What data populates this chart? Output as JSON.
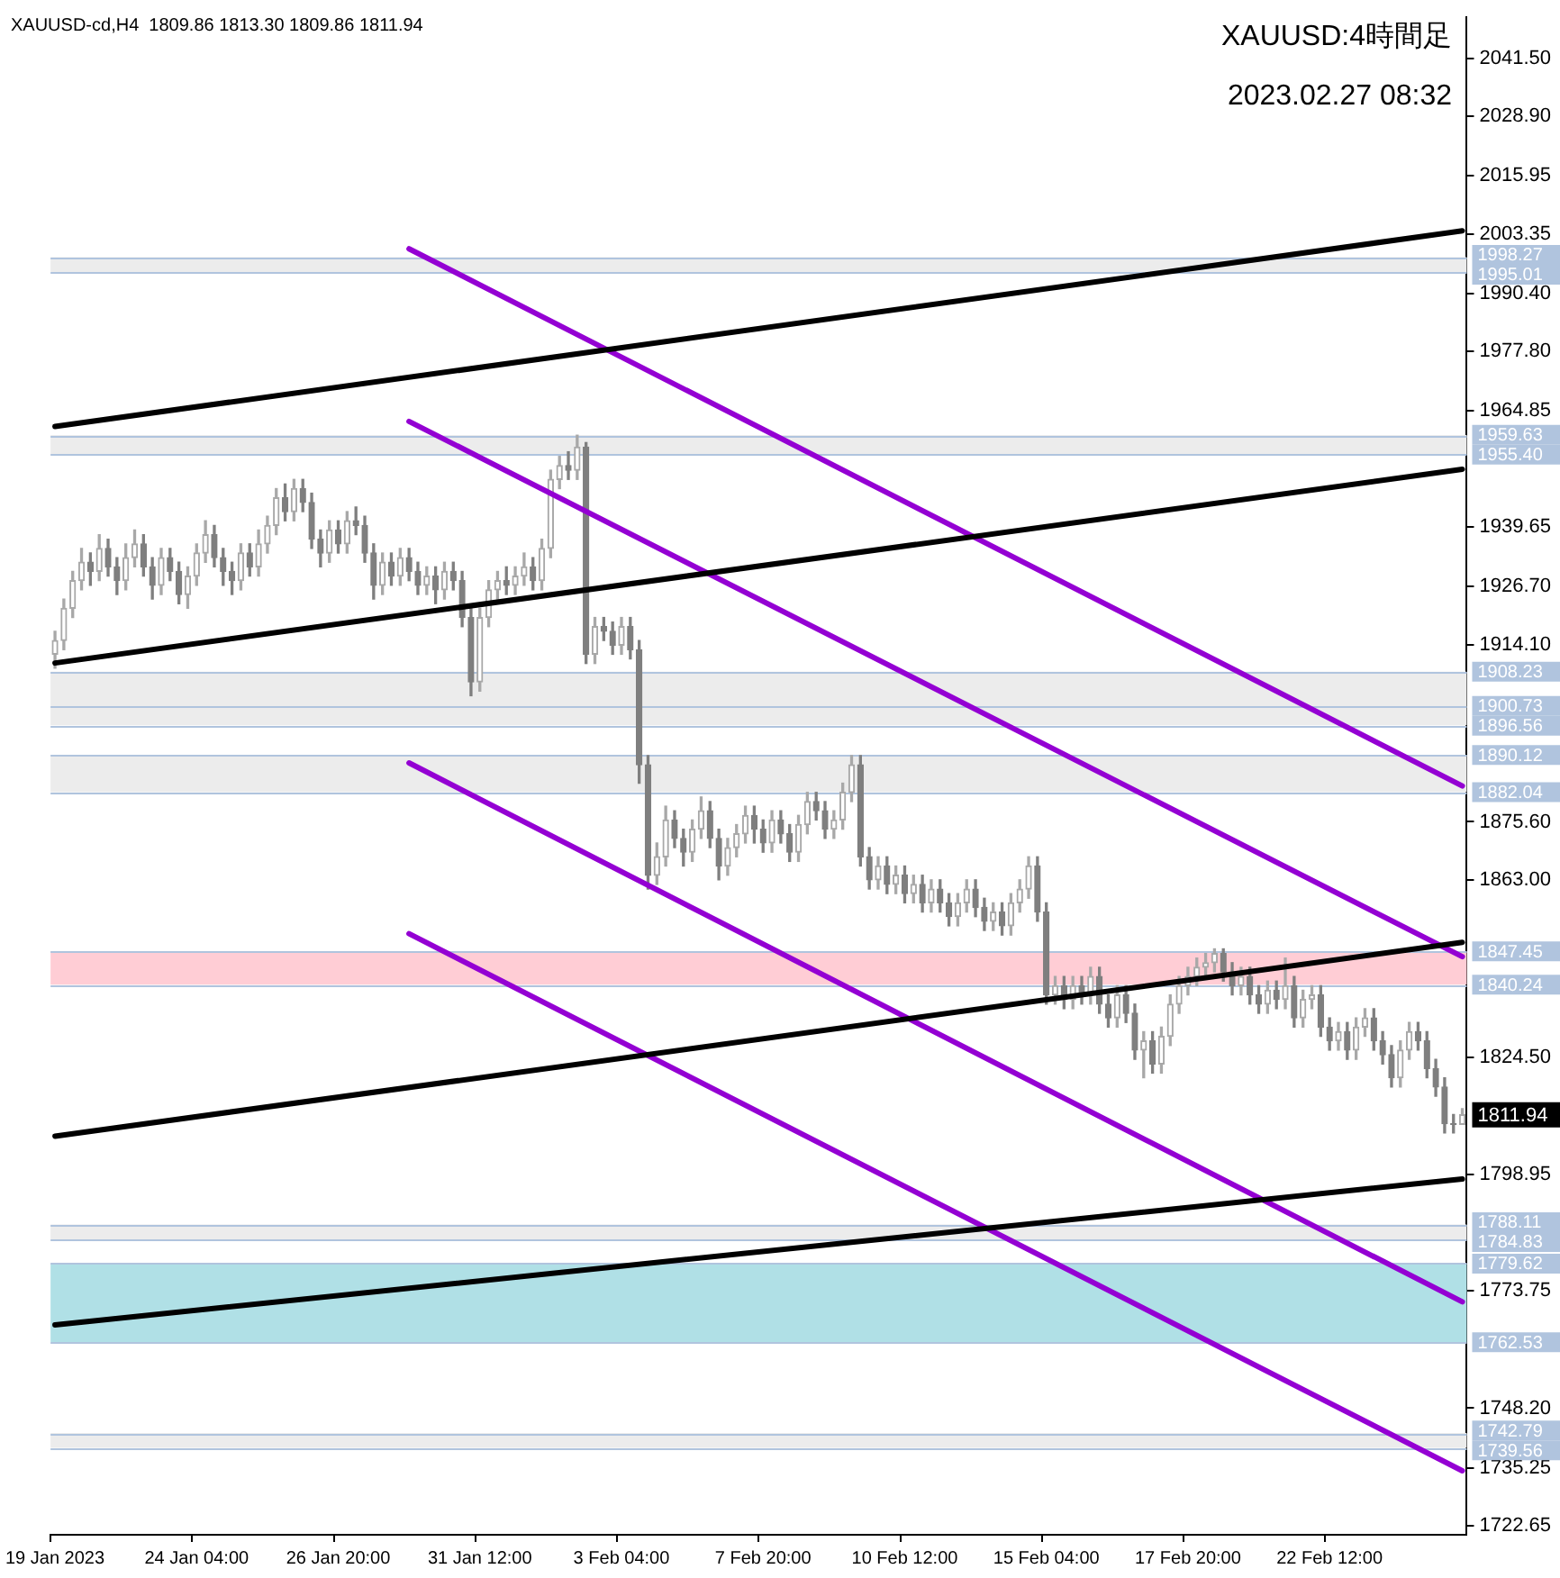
{
  "chart_data": {
    "type": "candlestick",
    "title": "XAUUSD-cd,H4  1809.86 1813.30 1809.86 1811.94",
    "subtitle": "XAUUSD:4時間足",
    "annotations": [
      "2023.02.27 08:32",
      "1811.94"
    ],
    "categories": [
      "19 Jan 2023",
      null,
      null,
      null,
      null,
      null,
      null,
      null,
      null,
      null,
      null,
      null,
      null,
      null,
      null,
      null,
      "24 Jan 04:00",
      null,
      null,
      null,
      null,
      null,
      null,
      null,
      null,
      null,
      null,
      null,
      null,
      null,
      null,
      null,
      "26 Jan 20:00",
      null,
      null,
      null,
      null,
      null,
      null,
      null,
      null,
      null,
      null,
      null,
      null,
      null,
      null,
      null,
      "31 Jan 12:00",
      null,
      null,
      null,
      null,
      null,
      null,
      null,
      null,
      null,
      null,
      null,
      null,
      null,
      null,
      null,
      "3 Feb 04:00",
      null,
      null,
      null,
      null,
      null,
      null,
      null,
      null,
      null,
      null,
      null,
      null,
      null,
      null,
      null,
      "7 Feb 20:00",
      null,
      null,
      null,
      null,
      null,
      null,
      null,
      null,
      null,
      null,
      null,
      null,
      null,
      null,
      null,
      "10 Feb 12:00",
      null,
      null,
      null,
      null,
      null,
      null,
      null,
      null,
      null,
      null,
      null,
      null,
      null,
      null,
      null,
      "15 Feb 04:00",
      null,
      null,
      null,
      null,
      null,
      null,
      null,
      null,
      null,
      null,
      null,
      null,
      null,
      null,
      null,
      "17 Feb 20:00",
      null,
      null,
      null,
      null,
      null,
      null,
      null,
      null,
      null,
      null,
      null,
      null,
      null,
      null,
      null,
      "22 Feb 12:00",
      null,
      null,
      null,
      null,
      null,
      null,
      null,
      null,
      null,
      null,
      null,
      null,
      null,
      null,
      null
    ],
    "ohlc": [
      [
        1912,
        1917,
        1909,
        1915
      ],
      [
        1915,
        1924,
        1913,
        1922
      ],
      [
        1922,
        1930,
        1920,
        1928
      ],
      [
        1928,
        1935,
        1926,
        1932
      ],
      [
        1932,
        1934,
        1927,
        1930
      ],
      [
        1930,
        1938,
        1928,
        1935
      ],
      [
        1935,
        1937,
        1929,
        1931
      ],
      [
        1931,
        1933,
        1925,
        1928
      ],
      [
        1928,
        1936,
        1926,
        1933
      ],
      [
        1933,
        1939,
        1931,
        1936
      ],
      [
        1936,
        1938,
        1929,
        1931
      ],
      [
        1931,
        1933,
        1924,
        1927
      ],
      [
        1927,
        1935,
        1925,
        1933
      ],
      [
        1933,
        1935,
        1928,
        1930
      ],
      [
        1930,
        1932,
        1923,
        1925
      ],
      [
        1925,
        1931,
        1922,
        1929
      ],
      [
        1929,
        1936,
        1927,
        1934
      ],
      [
        1934,
        1941,
        1932,
        1938
      ],
      [
        1938,
        1940,
        1931,
        1933
      ],
      [
        1933,
        1935,
        1927,
        1930
      ],
      [
        1930,
        1932,
        1925,
        1928
      ],
      [
        1928,
        1936,
        1926,
        1934
      ],
      [
        1934,
        1936,
        1929,
        1931
      ],
      [
        1931,
        1939,
        1929,
        1936
      ],
      [
        1936,
        1942,
        1934,
        1940
      ],
      [
        1940,
        1948,
        1938,
        1946
      ],
      [
        1946,
        1949,
        1941,
        1943
      ],
      [
        1943,
        1950,
        1941,
        1948
      ],
      [
        1948,
        1950,
        1943,
        1945
      ],
      [
        1945,
        1947,
        1935,
        1937
      ],
      [
        1937,
        1939,
        1931,
        1934
      ],
      [
        1934,
        1941,
        1932,
        1939
      ],
      [
        1939,
        1941,
        1934,
        1936
      ],
      [
        1936,
        1943,
        1934,
        1941
      ],
      [
        1941,
        1944,
        1938,
        1940
      ],
      [
        1940,
        1942,
        1932,
        1934
      ],
      [
        1934,
        1936,
        1924,
        1927
      ],
      [
        1927,
        1934,
        1925,
        1932
      ],
      [
        1932,
        1934,
        1927,
        1929
      ],
      [
        1929,
        1935,
        1927,
        1933
      ],
      [
        1933,
        1935,
        1928,
        1930
      ],
      [
        1930,
        1932,
        1925,
        1927
      ],
      [
        1927,
        1931,
        1925,
        1929
      ],
      [
        1929,
        1931,
        1923,
        1926
      ],
      [
        1926,
        1932,
        1924,
        1930
      ],
      [
        1930,
        1932,
        1926,
        1928
      ],
      [
        1928,
        1930,
        1918,
        1920
      ],
      [
        1920,
        1922,
        1903,
        1906
      ],
      [
        1906,
        1922,
        1904,
        1920
      ],
      [
        1920,
        1928,
        1918,
        1926
      ],
      [
        1926,
        1930,
        1924,
        1928
      ],
      [
        1928,
        1931,
        1925,
        1927
      ],
      [
        1927,
        1931,
        1925,
        1929
      ],
      [
        1929,
        1934,
        1927,
        1931
      ],
      [
        1931,
        1933,
        1926,
        1928
      ],
      [
        1928,
        1937,
        1926,
        1935
      ],
      [
        1935,
        1952,
        1933,
        1950
      ],
      [
        1950,
        1955,
        1948,
        1953
      ],
      [
        1953,
        1956,
        1950,
        1952
      ],
      [
        1952,
        1959.6,
        1950,
        1957
      ],
      [
        1957,
        1958,
        1910,
        1912
      ],
      [
        1912,
        1920,
        1910,
        1918
      ],
      [
        1918,
        1920,
        1915,
        1917
      ],
      [
        1917,
        1919,
        1912,
        1914
      ],
      [
        1914,
        1920,
        1912,
        1918
      ],
      [
        1918,
        1920,
        1911,
        1913
      ],
      [
        1913,
        1915,
        1884,
        1888
      ],
      [
        1888,
        1890,
        1861,
        1864
      ],
      [
        1864,
        1871,
        1862,
        1868
      ],
      [
        1868,
        1879,
        1866,
        1876
      ],
      [
        1876,
        1878,
        1870,
        1872
      ],
      [
        1872,
        1874,
        1866,
        1869
      ],
      [
        1869,
        1876,
        1867,
        1874
      ],
      [
        1874,
        1881,
        1872,
        1878
      ],
      [
        1878,
        1880,
        1870,
        1872
      ],
      [
        1872,
        1874,
        1863,
        1866
      ],
      [
        1866,
        1872,
        1864,
        1870
      ],
      [
        1870,
        1875,
        1868,
        1873
      ],
      [
        1873,
        1879,
        1871,
        1877
      ],
      [
        1877,
        1879,
        1871,
        1874
      ],
      [
        1874,
        1876,
        1869,
        1871
      ],
      [
        1871,
        1878,
        1869,
        1876
      ],
      [
        1876,
        1878,
        1871,
        1873
      ],
      [
        1873,
        1875,
        1867,
        1869
      ],
      [
        1869,
        1877,
        1867,
        1875
      ],
      [
        1875,
        1882,
        1873,
        1880
      ],
      [
        1880,
        1882,
        1876,
        1878
      ],
      [
        1878,
        1880,
        1872,
        1874
      ],
      [
        1874,
        1878,
        1872,
        1876
      ],
      [
        1876,
        1884,
        1874,
        1882
      ],
      [
        1882,
        1890,
        1880,
        1888
      ],
      [
        1888,
        1890,
        1866,
        1868
      ],
      [
        1868,
        1870,
        1861,
        1863
      ],
      [
        1863,
        1868,
        1861,
        1866
      ],
      [
        1866,
        1868,
        1860,
        1862
      ],
      [
        1862,
        1866,
        1860,
        1864
      ],
      [
        1864,
        1866,
        1858,
        1860
      ],
      [
        1860,
        1864,
        1858,
        1862
      ],
      [
        1862,
        1864,
        1856,
        1858
      ],
      [
        1858,
        1863,
        1856,
        1861
      ],
      [
        1861,
        1863,
        1856,
        1858
      ],
      [
        1858,
        1860,
        1853,
        1855
      ],
      [
        1855,
        1860,
        1853,
        1858
      ],
      [
        1858,
        1863,
        1856,
        1861
      ],
      [
        1861,
        1863,
        1855,
        1857
      ],
      [
        1857,
        1859,
        1852,
        1854
      ],
      [
        1854,
        1858,
        1852,
        1856
      ],
      [
        1856,
        1858,
        1851,
        1853
      ],
      [
        1853,
        1860,
        1851,
        1858
      ],
      [
        1858,
        1863,
        1856,
        1861
      ],
      [
        1861,
        1868,
        1859,
        1866
      ],
      [
        1866,
        1868,
        1854,
        1856
      ],
      [
        1856,
        1858,
        1836,
        1838
      ],
      [
        1838,
        1842,
        1836,
        1840
      ],
      [
        1840,
        1842,
        1835,
        1837
      ],
      [
        1837,
        1842,
        1835,
        1840
      ],
      [
        1840,
        1842,
        1836,
        1838
      ],
      [
        1838,
        1844,
        1836,
        1842
      ],
      [
        1842,
        1844,
        1834,
        1836
      ],
      [
        1836,
        1838,
        1831,
        1833
      ],
      [
        1833,
        1840,
        1831,
        1838
      ],
      [
        1838,
        1840,
        1832,
        1834
      ],
      [
        1834,
        1836,
        1824,
        1826
      ],
      [
        1826,
        1830,
        1820,
        1828
      ],
      [
        1828,
        1830,
        1821,
        1823
      ],
      [
        1823,
        1831,
        1821,
        1829
      ],
      [
        1829,
        1838,
        1827,
        1836
      ],
      [
        1836,
        1842,
        1834,
        1840
      ],
      [
        1840,
        1844,
        1838,
        1842
      ],
      [
        1842,
        1846,
        1840,
        1844
      ],
      [
        1844,
        1847,
        1842,
        1845
      ],
      [
        1845,
        1848,
        1843,
        1847
      ],
      [
        1847,
        1848,
        1841,
        1843
      ],
      [
        1843,
        1845,
        1838,
        1840
      ],
      [
        1840,
        1844,
        1838,
        1842
      ],
      [
        1842,
        1844,
        1836,
        1838
      ],
      [
        1838,
        1840,
        1834,
        1836
      ],
      [
        1836,
        1841,
        1834,
        1839
      ],
      [
        1839,
        1841,
        1835,
        1837
      ],
      [
        1837,
        1846,
        1835,
        1840
      ],
      [
        1840,
        1842,
        1831,
        1833
      ],
      [
        1833,
        1839,
        1831,
        1837
      ],
      [
        1837,
        1840,
        1835,
        1838
      ],
      [
        1838,
        1840,
        1829,
        1831
      ],
      [
        1831,
        1833,
        1826,
        1828
      ],
      [
        1828,
        1832,
        1826,
        1830
      ],
      [
        1830,
        1832,
        1824,
        1826
      ],
      [
        1826,
        1833,
        1824,
        1831
      ],
      [
        1831,
        1835,
        1829,
        1833
      ],
      [
        1833,
        1835,
        1826,
        1828
      ],
      [
        1828,
        1830,
        1823,
        1825
      ],
      [
        1825,
        1827,
        1818,
        1820
      ],
      [
        1820,
        1828,
        1818,
        1826
      ],
      [
        1826,
        1832,
        1824,
        1830
      ],
      [
        1830,
        1832,
        1826,
        1828
      ],
      [
        1828,
        1830,
        1820,
        1822
      ],
      [
        1822,
        1824,
        1816,
        1818
      ],
      [
        1818,
        1820,
        1808,
        1810
      ],
      [
        1810,
        1812,
        1808,
        1809.86
      ],
      [
        1809.86,
        1813.3,
        1809.86,
        1811.94
      ]
    ],
    "series": [
      {
        "type": "line",
        "color": "#000000",
        "values": [
          1961.5,
          null,
          null,
          null,
          null,
          null,
          null,
          null,
          null,
          null,
          null,
          null,
          null,
          null,
          null,
          null,
          null,
          null,
          null,
          null,
          null,
          null,
          null,
          null,
          null,
          null,
          null,
          null,
          null,
          null,
          null,
          null,
          null,
          null,
          null,
          null,
          null,
          null,
          null,
          null,
          null,
          null,
          null,
          null,
          null,
          null,
          null,
          null,
          null,
          null,
          null,
          null,
          null,
          null,
          null,
          null,
          null,
          null,
          null,
          null,
          null,
          null,
          null,
          null,
          null,
          null,
          null,
          null,
          null,
          null,
          null,
          null,
          null,
          null,
          null,
          null,
          null,
          null,
          null,
          null,
          null,
          null,
          null,
          null,
          null,
          null,
          null,
          null,
          null,
          null,
          null,
          null,
          null,
          null,
          null,
          null,
          null,
          null,
          null,
          null,
          null,
          null,
          null,
          null,
          null,
          null,
          null,
          null,
          null,
          null,
          null,
          null,
          null,
          null,
          null,
          null,
          null,
          null,
          null,
          null,
          null,
          null,
          null,
          null,
          null,
          null,
          null,
          null,
          null,
          null,
          null,
          null,
          null,
          null,
          null,
          null,
          null,
          null,
          null,
          null,
          null,
          null,
          null,
          null,
          null,
          null,
          null,
          null,
          null,
          null,
          null,
          null,
          null,
          null,
          null,
          null,
          null,
          null,
          null,
          2004.0
        ]
      },
      {
        "type": "line",
        "color": "#000000",
        "values": [
          1910.1,
          null,
          null,
          null,
          null,
          null,
          null,
          null,
          null,
          null,
          null,
          null,
          null,
          null,
          null,
          null,
          null,
          null,
          null,
          null,
          null,
          null,
          null,
          null,
          null,
          null,
          null,
          null,
          null,
          null,
          null,
          null,
          null,
          null,
          null,
          null,
          null,
          null,
          null,
          null,
          null,
          null,
          null,
          null,
          null,
          null,
          null,
          null,
          null,
          null,
          null,
          null,
          null,
          null,
          null,
          null,
          null,
          null,
          null,
          null,
          null,
          null,
          null,
          null,
          null,
          null,
          null,
          null,
          null,
          null,
          null,
          null,
          null,
          null,
          null,
          null,
          null,
          null,
          null,
          null,
          null,
          null,
          null,
          null,
          null,
          null,
          null,
          null,
          null,
          null,
          null,
          null,
          null,
          null,
          null,
          null,
          null,
          null,
          null,
          null,
          null,
          null,
          null,
          null,
          null,
          null,
          null,
          null,
          null,
          null,
          null,
          null,
          null,
          null,
          null,
          null,
          null,
          null,
          null,
          null,
          null,
          null,
          null,
          null,
          null,
          null,
          null,
          null,
          null,
          null,
          null,
          null,
          null,
          null,
          null,
          null,
          null,
          null,
          null,
          null,
          null,
          null,
          null,
          null,
          null,
          null,
          null,
          null,
          null,
          null,
          null,
          null,
          null,
          null,
          null,
          null,
          null,
          null,
          null,
          1952.2
        ]
      },
      {
        "type": "line",
        "color": "#000000",
        "values": [
          1807.3,
          null,
          null,
          null,
          null,
          null,
          null,
          null,
          null,
          null,
          null,
          null,
          null,
          null,
          null,
          null,
          null,
          null,
          null,
          null,
          null,
          null,
          null,
          null,
          null,
          null,
          null,
          null,
          null,
          null,
          null,
          null,
          null,
          null,
          null,
          null,
          null,
          null,
          null,
          null,
          null,
          null,
          null,
          null,
          null,
          null,
          null,
          null,
          null,
          null,
          null,
          null,
          null,
          null,
          null,
          null,
          null,
          null,
          null,
          null,
          null,
          null,
          null,
          null,
          null,
          null,
          null,
          null,
          null,
          null,
          null,
          null,
          null,
          null,
          null,
          null,
          null,
          null,
          null,
          null,
          null,
          null,
          null,
          null,
          null,
          null,
          null,
          null,
          null,
          null,
          null,
          null,
          null,
          null,
          null,
          null,
          null,
          null,
          null,
          null,
          null,
          null,
          null,
          null,
          null,
          null,
          null,
          null,
          null,
          null,
          null,
          null,
          null,
          null,
          null,
          null,
          null,
          null,
          null,
          null,
          null,
          null,
          null,
          null,
          null,
          null,
          null,
          null,
          null,
          null,
          null,
          null,
          null,
          null,
          null,
          null,
          null,
          null,
          null,
          null,
          null,
          null,
          null,
          null,
          null,
          null,
          null,
          null,
          null,
          null,
          null,
          null,
          null,
          null,
          null,
          null,
          null,
          null,
          null,
          1849.4
        ]
      },
      {
        "type": "line",
        "color": "#000000",
        "values": [
          1766.3,
          null,
          null,
          null,
          null,
          null,
          null,
          null,
          null,
          null,
          null,
          null,
          null,
          null,
          null,
          null,
          null,
          null,
          null,
          null,
          null,
          null,
          null,
          null,
          null,
          null,
          null,
          null,
          null,
          null,
          null,
          null,
          null,
          null,
          null,
          null,
          null,
          null,
          null,
          null,
          null,
          null,
          null,
          null,
          null,
          null,
          null,
          null,
          null,
          null,
          null,
          null,
          null,
          null,
          null,
          null,
          null,
          null,
          null,
          null,
          null,
          null,
          null,
          null,
          null,
          null,
          null,
          null,
          null,
          null,
          null,
          null,
          null,
          null,
          null,
          null,
          null,
          null,
          null,
          null,
          null,
          null,
          null,
          null,
          null,
          null,
          null,
          null,
          null,
          null,
          null,
          null,
          null,
          null,
          null,
          null,
          null,
          null,
          null,
          null,
          null,
          null,
          null,
          null,
          null,
          null,
          null,
          null,
          null,
          null,
          null,
          null,
          null,
          null,
          null,
          null,
          null,
          null,
          null,
          null,
          null,
          null,
          null,
          null,
          null,
          null,
          null,
          null,
          null,
          null,
          null,
          null,
          null,
          null,
          null,
          null,
          null,
          null,
          null,
          null,
          null,
          null,
          null,
          null,
          null,
          null,
          null,
          null,
          null,
          null,
          null,
          null,
          null,
          null,
          null,
          null,
          null,
          null,
          null,
          1798.0
        ]
      },
      {
        "type": "line",
        "color": "#9400d3",
        "values": [
          null,
          null,
          null,
          null,
          null,
          null,
          null,
          null,
          null,
          null,
          null,
          null,
          null,
          null,
          null,
          null,
          null,
          null,
          null,
          null,
          null,
          null,
          null,
          null,
          null,
          null,
          null,
          null,
          null,
          null,
          null,
          null,
          null,
          null,
          null,
          null,
          null,
          null,
          null,
          null,
          2000.1,
          null,
          null,
          null,
          null,
          null,
          null,
          null,
          null,
          null,
          null,
          null,
          null,
          null,
          null,
          null,
          null,
          null,
          null,
          null,
          null,
          null,
          null,
          null,
          null,
          null,
          null,
          null,
          null,
          null,
          null,
          null,
          null,
          null,
          null,
          null,
          null,
          null,
          null,
          null,
          null,
          null,
          null,
          null,
          null,
          null,
          null,
          null,
          null,
          null,
          null,
          null,
          null,
          null,
          null,
          null,
          null,
          null,
          null,
          null,
          null,
          null,
          null,
          null,
          null,
          null,
          null,
          null,
          null,
          null,
          null,
          null,
          null,
          null,
          null,
          null,
          null,
          null,
          null,
          null,
          null,
          null,
          null,
          null,
          null,
          null,
          null,
          null,
          null,
          null,
          null,
          null,
          null,
          null,
          null,
          null,
          null,
          null,
          null,
          null,
          null,
          null,
          null,
          null,
          null,
          null,
          null,
          null,
          null,
          null,
          null,
          null,
          null,
          null,
          null,
          null,
          null,
          null,
          null,
          1883.4
        ]
      },
      {
        "type": "line",
        "color": "#9400d3",
        "values": [
          null,
          null,
          null,
          null,
          null,
          null,
          null,
          null,
          null,
          null,
          null,
          null,
          null,
          null,
          null,
          null,
          null,
          null,
          null,
          null,
          null,
          null,
          null,
          null,
          null,
          null,
          null,
          null,
          null,
          null,
          null,
          null,
          null,
          null,
          null,
          null,
          null,
          null,
          null,
          null,
          1962.6,
          null,
          null,
          null,
          null,
          null,
          null,
          null,
          null,
          null,
          null,
          null,
          null,
          null,
          null,
          null,
          null,
          null,
          null,
          null,
          null,
          null,
          null,
          null,
          null,
          null,
          null,
          null,
          null,
          null,
          null,
          null,
          null,
          null,
          null,
          null,
          null,
          null,
          null,
          null,
          null,
          null,
          null,
          null,
          null,
          null,
          null,
          null,
          null,
          null,
          null,
          null,
          null,
          null,
          null,
          null,
          null,
          null,
          null,
          null,
          null,
          null,
          null,
          null,
          null,
          null,
          null,
          null,
          null,
          null,
          null,
          null,
          null,
          null,
          null,
          null,
          null,
          null,
          null,
          null,
          null,
          null,
          null,
          null,
          null,
          null,
          null,
          null,
          null,
          null,
          null,
          null,
          null,
          null,
          null,
          null,
          null,
          null,
          null,
          null,
          null,
          null,
          null,
          null,
          null,
          null,
          null,
          null,
          null,
          null,
          null,
          null,
          null,
          null,
          null,
          null,
          null,
          null,
          null,
          1846.3
        ]
      },
      {
        "type": "line",
        "color": "#9400d3",
        "values": [
          null,
          null,
          null,
          null,
          null,
          null,
          null,
          null,
          null,
          null,
          null,
          null,
          null,
          null,
          null,
          null,
          null,
          null,
          null,
          null,
          null,
          null,
          null,
          null,
          null,
          null,
          null,
          null,
          null,
          null,
          null,
          null,
          null,
          null,
          null,
          null,
          null,
          null,
          null,
          null,
          1888.4,
          null,
          null,
          null,
          null,
          null,
          null,
          null,
          null,
          null,
          null,
          null,
          null,
          null,
          null,
          null,
          null,
          null,
          null,
          null,
          null,
          null,
          null,
          null,
          null,
          null,
          null,
          null,
          null,
          null,
          null,
          null,
          null,
          null,
          null,
          null,
          null,
          null,
          null,
          null,
          null,
          null,
          null,
          null,
          null,
          null,
          null,
          null,
          null,
          null,
          null,
          null,
          null,
          null,
          null,
          null,
          null,
          null,
          null,
          null,
          null,
          null,
          null,
          null,
          null,
          null,
          null,
          null,
          null,
          null,
          null,
          null,
          null,
          null,
          null,
          null,
          null,
          null,
          null,
          null,
          null,
          null,
          null,
          null,
          null,
          null,
          null,
          null,
          null,
          null,
          null,
          null,
          null,
          null,
          null,
          null,
          null,
          null,
          null,
          null,
          null,
          null,
          null,
          null,
          null,
          null,
          null,
          null,
          null,
          null,
          null,
          null,
          null,
          null,
          null,
          null,
          null,
          null,
          null,
          1771.3
        ]
      },
      {
        "type": "line",
        "color": "#9400d3",
        "values": [
          null,
          null,
          null,
          null,
          null,
          null,
          null,
          null,
          null,
          null,
          null,
          null,
          null,
          null,
          null,
          null,
          null,
          null,
          null,
          null,
          null,
          null,
          null,
          null,
          null,
          null,
          null,
          null,
          null,
          null,
          null,
          null,
          null,
          null,
          null,
          null,
          null,
          null,
          null,
          null,
          1851.3,
          null,
          null,
          null,
          null,
          null,
          null,
          null,
          null,
          null,
          null,
          null,
          null,
          null,
          null,
          null,
          null,
          null,
          null,
          null,
          null,
          null,
          null,
          null,
          null,
          null,
          null,
          null,
          null,
          null,
          null,
          null,
          null,
          null,
          null,
          null,
          null,
          null,
          null,
          null,
          null,
          null,
          null,
          null,
          null,
          null,
          null,
          null,
          null,
          null,
          null,
          null,
          null,
          null,
          null,
          null,
          null,
          null,
          null,
          null,
          null,
          null,
          null,
          null,
          null,
          null,
          null,
          null,
          null,
          null,
          null,
          null,
          null,
          null,
          null,
          null,
          null,
          null,
          null,
          null,
          null,
          null,
          null,
          null,
          null,
          null,
          null,
          null,
          null,
          null,
          null,
          null,
          null,
          null,
          null,
          null,
          null,
          null,
          null,
          null,
          null,
          null,
          null,
          null,
          null,
          null,
          null,
          null,
          null,
          null,
          null,
          null,
          null,
          null,
          null,
          null,
          null,
          null,
          null,
          1734.6
        ]
      }
    ],
    "ylim": [
      1720.7,
      2050.4
    ],
    "yticks": [
      {
        "value": 2041.5,
        "label": "2041.50"
      },
      {
        "value": 2028.9,
        "label": "2028.90"
      },
      {
        "value": 2015.95,
        "label": "2015.95"
      },
      {
        "value": 2003.35,
        "label": "2003.35"
      },
      {
        "value": 1990.4,
        "label": "1990.40"
      },
      {
        "value": 1977.8,
        "label": "1977.80"
      },
      {
        "value": 1964.85,
        "label": "1964.85"
      },
      {
        "value": 1939.65,
        "label": "1939.65"
      },
      {
        "value": 1926.7,
        "label": "1926.70"
      },
      {
        "value": 1914.1,
        "label": "1914.10"
      },
      {
        "value": 1875.6,
        "label": "1875.60"
      },
      {
        "value": 1863.0,
        "label": "1863.00"
      },
      {
        "value": 1824.5,
        "label": "1824.50"
      },
      {
        "value": 1798.95,
        "label": "1798.95"
      },
      {
        "value": 1773.75,
        "label": "1773.75"
      },
      {
        "value": 1748.2,
        "label": "1748.20"
      },
      {
        "value": 1735.25,
        "label": "1735.25"
      },
      {
        "value": 1722.65,
        "label": "1722.65"
      }
    ],
    "bands": [
      {
        "axis": "y",
        "from": 1995.01,
        "to": 1998.27,
        "color": "#ececec"
      },
      {
        "axis": "y",
        "from": 1955.4,
        "to": 1959.63,
        "color": "#ececec"
      },
      {
        "axis": "y",
        "from": 1896.56,
        "to": 1908.23,
        "color": "#ececec"
      },
      {
        "axis": "y",
        "from": 1882.04,
        "to": 1890.12,
        "color": "#ececec"
      },
      {
        "axis": "y",
        "from": 1840.24,
        "to": 1847.45,
        "color": "#ffcdd5"
      },
      {
        "axis": "y",
        "from": 1784.83,
        "to": 1788.11,
        "color": "#ececec"
      },
      {
        "axis": "y",
        "from": 1762.53,
        "to": 1779.62,
        "color": "#b0e0e6"
      },
      {
        "axis": "y",
        "from": 1739.56,
        "to": 1742.79,
        "color": "#ececec"
      }
    ],
    "ref_lines": [
      {
        "axis": "y",
        "value": 1998.27,
        "label": "1998.27",
        "color": "#b0c4de"
      },
      {
        "axis": "y",
        "value": 1995.01,
        "label": "1995.01",
        "color": "#b0c4de"
      },
      {
        "axis": "y",
        "value": 1959.63,
        "label": "1959.63",
        "color": "#b0c4de"
      },
      {
        "axis": "y",
        "value": 1955.4,
        "label": "1955.40",
        "color": "#b0c4de"
      },
      {
        "axis": "y",
        "value": 1908.23,
        "label": "1908.23",
        "color": "#b0c4de"
      },
      {
        "axis": "y",
        "value": 1900.73,
        "label": "1900.73",
        "color": "#b0c4de"
      },
      {
        "axis": "y",
        "value": 1896.56,
        "label": "1896.56",
        "color": "#b0c4de"
      },
      {
        "axis": "y",
        "value": 1890.12,
        "label": "1890.12",
        "color": "#b0c4de"
      },
      {
        "axis": "y",
        "value": 1882.04,
        "label": "1882.04",
        "color": "#b0c4de"
      },
      {
        "axis": "y",
        "value": 1847.45,
        "label": "1847.45",
        "color": "#b0c4de"
      },
      {
        "axis": "y",
        "value": 1840.24,
        "label": "1840.24",
        "color": "#b0c4de"
      },
      {
        "axis": "y",
        "value": 1788.11,
        "label": "1788.11",
        "color": "#b0c4de"
      },
      {
        "axis": "y",
        "value": 1784.83,
        "label": "1784.83",
        "color": "#b0c4de"
      },
      {
        "axis": "y",
        "value": 1779.62,
        "label": "1779.62",
        "color": "#b0c4de"
      },
      {
        "axis": "y",
        "value": 1762.53,
        "label": "1762.53",
        "color": "#b0c4de"
      },
      {
        "axis": "y",
        "value": 1742.79,
        "label": "1742.79",
        "color": "#b0c4de"
      },
      {
        "axis": "y",
        "value": 1739.56,
        "label": "1739.56",
        "color": "#b0c4de"
      }
    ],
    "marker": "none",
    "line_style": "solid"
  }
}
